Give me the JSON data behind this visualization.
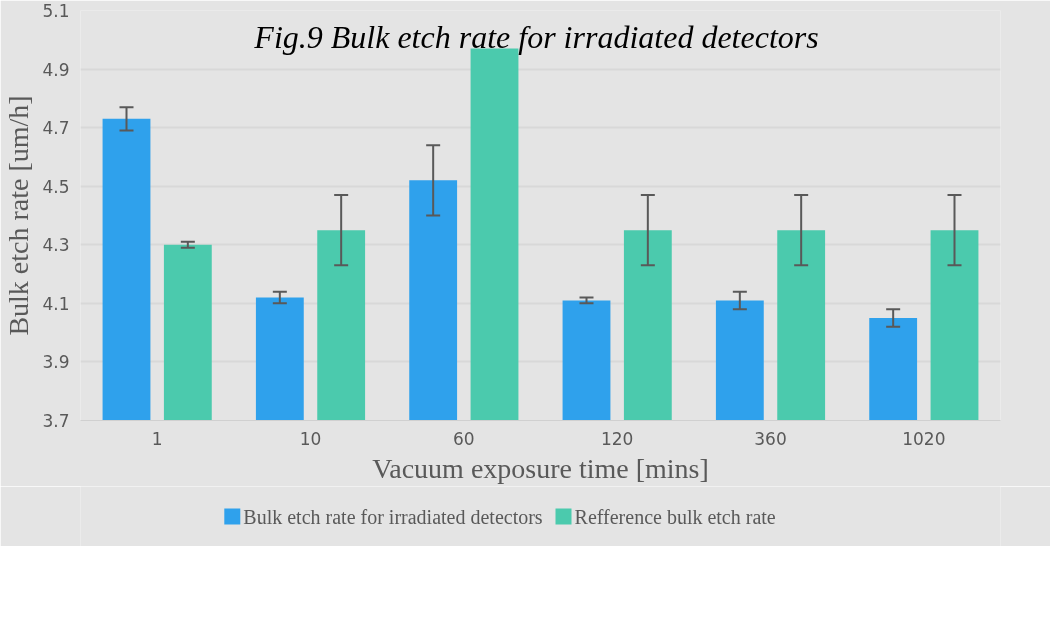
{
  "chart_data": {
    "type": "bar",
    "title": "Fig.9  Bulk etch rate for irradiated detectors",
    "xlabel": "Vacuum exposure time [mins]",
    "ylabel": "Bulk etch rate [um/h]",
    "categories": [
      "1",
      "10",
      "60",
      "120",
      "360",
      "1020"
    ],
    "series": [
      {
        "name": "Bulk etch rate for irradiated detectors",
        "color": "#2fa1ec",
        "values": [
          4.73,
          4.12,
          4.52,
          4.11,
          4.11,
          4.05
        ],
        "errors": [
          0.04,
          0.02,
          0.12,
          0.01,
          0.03,
          0.03
        ]
      },
      {
        "name": "Refference bulk etch rate",
        "color": "#4bcaad",
        "values": [
          4.3,
          4.35,
          4.97,
          4.35,
          4.35,
          4.35
        ],
        "errors": [
          0.01,
          0.12,
          null,
          0.12,
          0.12,
          0.12
        ]
      }
    ],
    "ylim": [
      3.7,
      5.1
    ],
    "yticks": [
      3.7,
      3.9,
      4.1,
      4.3,
      4.5,
      4.7,
      4.9,
      5.1
    ],
    "grid": "y",
    "legend": "bottom"
  }
}
